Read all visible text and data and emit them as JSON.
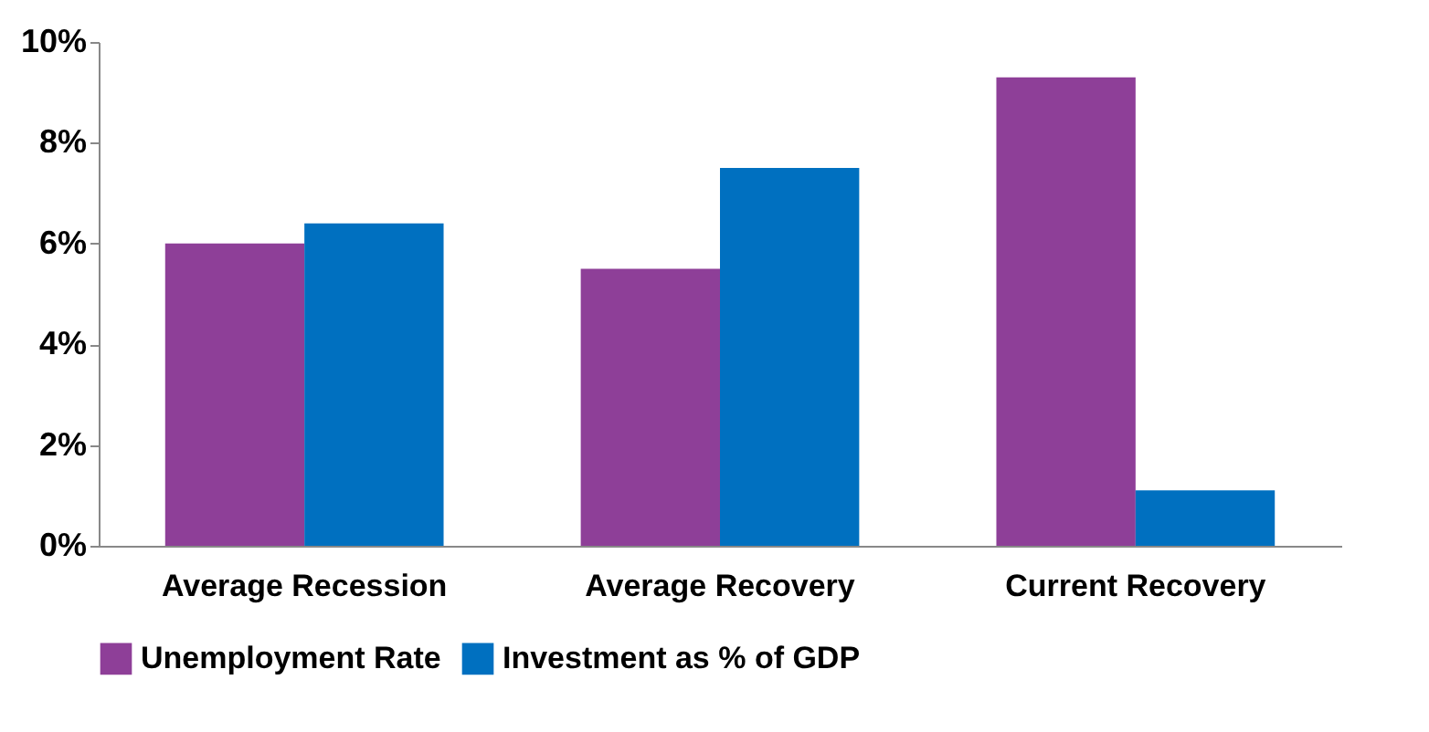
{
  "chart_data": {
    "type": "bar",
    "categories": [
      "Average Recession",
      "Average Recovery",
      "Current Recovery"
    ],
    "series": [
      {
        "name": "Unemployment Rate",
        "color": "#8e3f98",
        "values": [
          6.0,
          5.5,
          9.3
        ]
      },
      {
        "name": "Investment as % of GDP",
        "color": "#0070c0",
        "values": [
          6.4,
          7.5,
          1.1
        ]
      }
    ],
    "ylim": [
      0,
      10
    ],
    "yticks": [
      {
        "value": 0,
        "label": "0%"
      },
      {
        "value": 2,
        "label": "2%"
      },
      {
        "value": 4,
        "label": "4%"
      },
      {
        "value": 6,
        "label": "6%"
      },
      {
        "value": 8,
        "label": "8%"
      },
      {
        "value": 10,
        "label": "10%"
      }
    ],
    "grid": false,
    "legend": "bottom"
  }
}
